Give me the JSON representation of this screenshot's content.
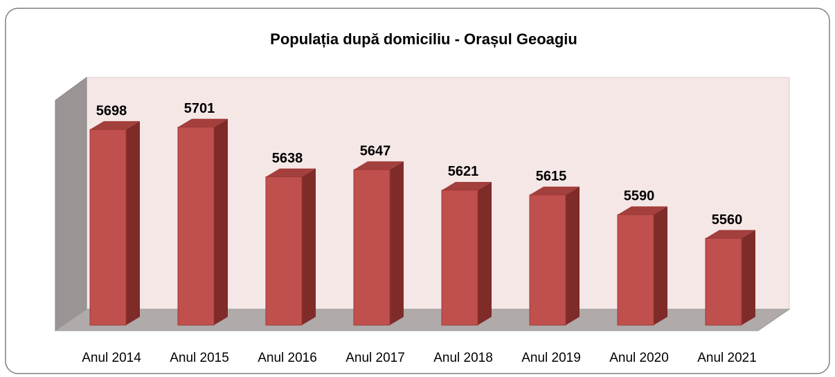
{
  "chart_data": {
    "type": "bar3d",
    "title": "Populația după domiciliu - Orașul Geoagiu",
    "categories": [
      "Anul 2014",
      "Anul 2015",
      "Anul 2016",
      "Anul 2017",
      "Anul 2018",
      "Anul 2019",
      "Anul 2020",
      "Anul 2021"
    ],
    "values": [
      5698,
      5701,
      5638,
      5647,
      5621,
      5615,
      5590,
      5560
    ],
    "color": "#c0504d",
    "ylim": [
      5450,
      5770
    ]
  }
}
